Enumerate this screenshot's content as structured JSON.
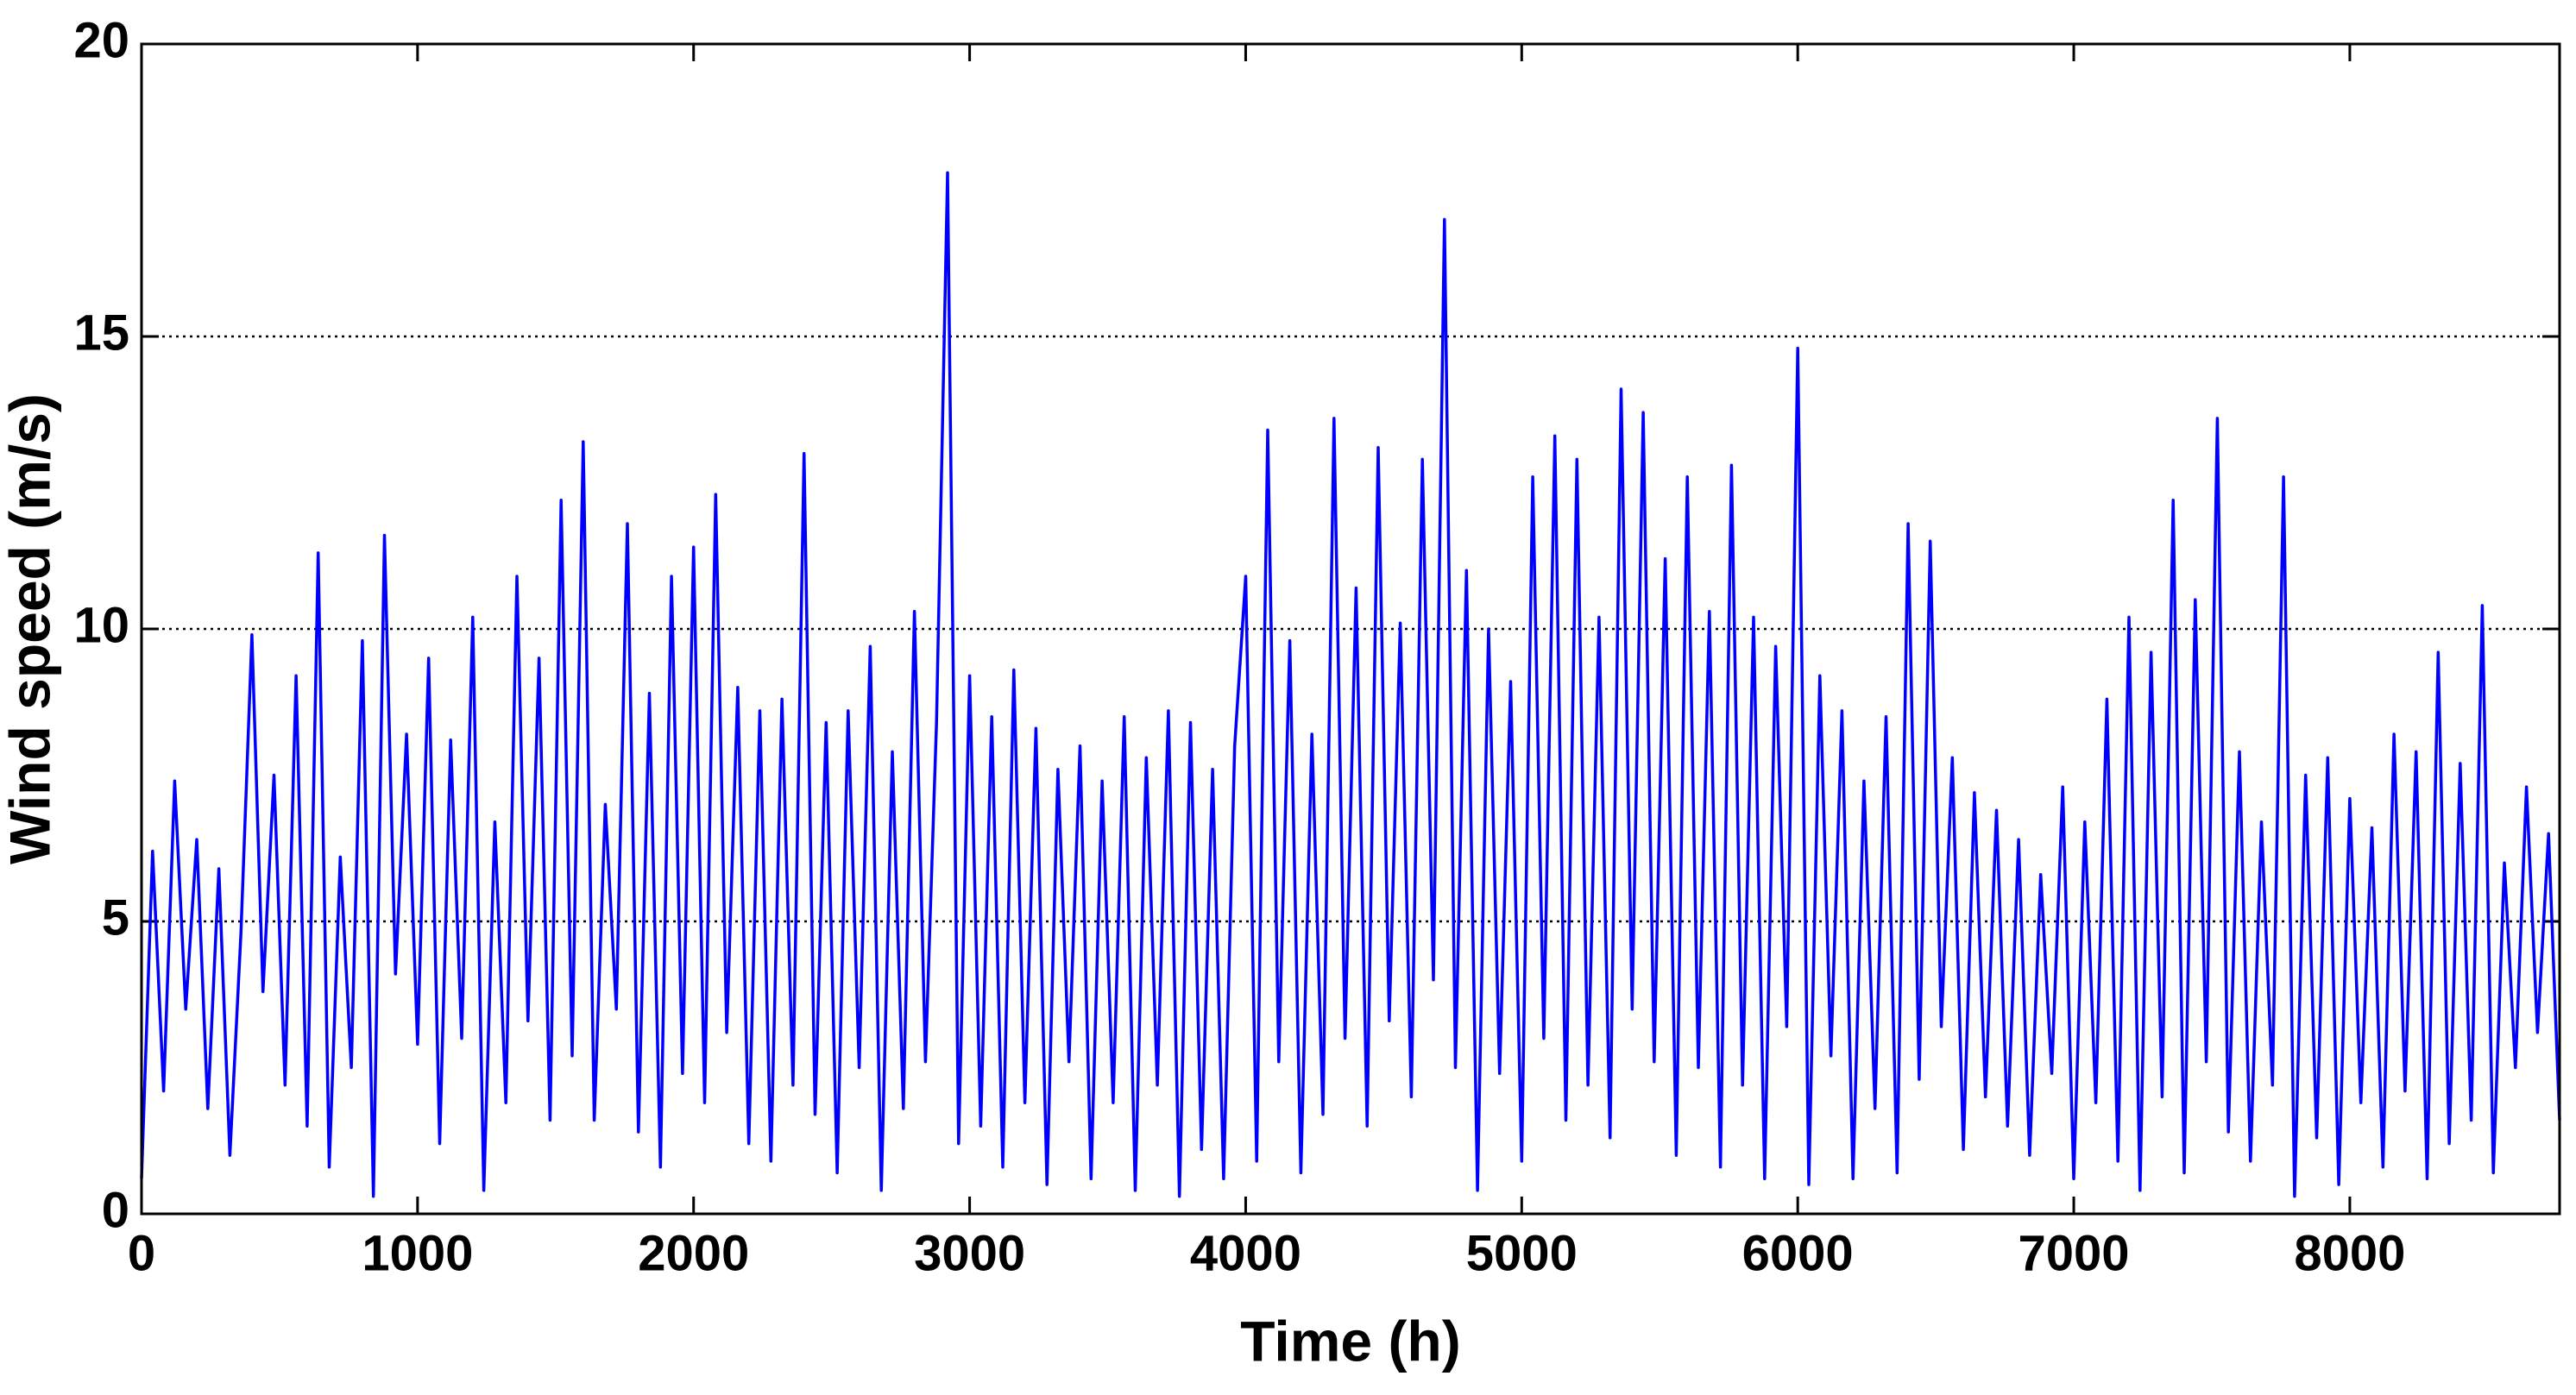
{
  "chart_data": {
    "type": "line",
    "x_label": "Time (h)",
    "y_label": "Wind speed (m/s)",
    "x": [
      0,
      40,
      80,
      120,
      160,
      200,
      240,
      280,
      320,
      360,
      400,
      440,
      480,
      520,
      560,
      600,
      640,
      680,
      720,
      760,
      800,
      840,
      880,
      920,
      960,
      1000,
      1040,
      1080,
      1120,
      1160,
      1200,
      1240,
      1280,
      1320,
      1360,
      1400,
      1440,
      1480,
      1520,
      1560,
      1600,
      1640,
      1680,
      1720,
      1760,
      1800,
      1840,
      1880,
      1920,
      1960,
      2000,
      2040,
      2080,
      2120,
      2160,
      2200,
      2240,
      2280,
      2320,
      2360,
      2400,
      2440,
      2480,
      2520,
      2560,
      2600,
      2640,
      2680,
      2720,
      2760,
      2800,
      2840,
      2880,
      2920,
      2960,
      3000,
      3040,
      3080,
      3120,
      3160,
      3200,
      3240,
      3280,
      3320,
      3360,
      3400,
      3440,
      3480,
      3520,
      3560,
      3600,
      3640,
      3680,
      3720,
      3760,
      3800,
      3840,
      3880,
      3920,
      3960,
      4000,
      4040,
      4080,
      4120,
      4160,
      4200,
      4240,
      4280,
      4320,
      4360,
      4400,
      4440,
      4480,
      4520,
      4560,
      4600,
      4640,
      4680,
      4720,
      4760,
      4800,
      4840,
      4880,
      4920,
      4960,
      5000,
      5040,
      5080,
      5120,
      5160,
      5200,
      5240,
      5280,
      5320,
      5360,
      5400,
      5440,
      5480,
      5520,
      5560,
      5600,
      5640,
      5680,
      5720,
      5760,
      5800,
      5840,
      5880,
      5920,
      5960,
      6000,
      6040,
      6080,
      6120,
      6160,
      6200,
      6240,
      6280,
      6320,
      6360,
      6400,
      6440,
      6480,
      6520,
      6560,
      6600,
      6640,
      6680,
      6720,
      6760,
      6800,
      6840,
      6880,
      6920,
      6960,
      7000,
      7040,
      7080,
      7120,
      7160,
      7200,
      7240,
      7280,
      7320,
      7360,
      7400,
      7440,
      7480,
      7520,
      7560,
      7600,
      7640,
      7680,
      7720,
      7760,
      7800,
      7840,
      7880,
      7920,
      7960,
      8000,
      8040,
      8080,
      8120,
      8160,
      8200,
      8240,
      8280,
      8320,
      8360,
      8400,
      8440,
      8480,
      8520,
      8560,
      8600,
      8640,
      8680,
      8720,
      8760
    ],
    "series": [
      {
        "color": "#0000ff",
        "values": [
          0.6,
          6.2,
          2.1,
          7.4,
          3.5,
          6.4,
          1.8,
          5.9,
          1.0,
          4.8,
          9.9,
          3.8,
          7.5,
          2.2,
          9.2,
          1.5,
          11.3,
          0.8,
          6.1,
          2.5,
          9.8,
          0.3,
          11.6,
          4.1,
          8.2,
          2.9,
          9.5,
          1.2,
          8.1,
          3.0,
          10.2,
          0.4,
          6.7,
          1.9,
          10.9,
          3.3,
          9.5,
          1.6,
          12.2,
          2.7,
          13.2,
          1.6,
          7.0,
          3.5,
          11.8,
          1.4,
          8.9,
          0.8,
          10.9,
          2.4,
          11.4,
          1.9,
          12.3,
          3.1,
          9.0,
          1.2,
          8.6,
          0.9,
          8.8,
          2.2,
          13.0,
          1.7,
          8.4,
          0.7,
          8.6,
          2.5,
          9.7,
          0.4,
          7.9,
          1.8,
          10.3,
          2.6,
          8.4,
          17.8,
          1.2,
          9.2,
          1.5,
          8.5,
          0.8,
          9.3,
          1.9,
          8.3,
          0.5,
          7.6,
          2.6,
          8.0,
          0.6,
          7.4,
          1.9,
          8.5,
          0.4,
          7.8,
          2.2,
          8.6,
          0.3,
          8.4,
          1.1,
          7.6,
          0.6,
          8.0,
          10.9,
          0.9,
          13.4,
          2.6,
          9.8,
          0.7,
          8.2,
          1.7,
          13.6,
          3.0,
          10.7,
          1.5,
          13.1,
          3.3,
          10.1,
          2.0,
          12.9,
          4.0,
          17.0,
          2.5,
          11.0,
          0.4,
          10.0,
          2.4,
          9.1,
          0.9,
          12.6,
          3.0,
          13.3,
          1.6,
          12.9,
          2.2,
          10.2,
          1.3,
          14.1,
          3.5,
          13.7,
          2.6,
          11.2,
          1.0,
          12.6,
          2.5,
          10.3,
          0.8,
          12.8,
          2.2,
          10.2,
          0.6,
          9.7,
          3.2,
          14.8,
          0.5,
          9.2,
          2.7,
          8.6,
          0.6,
          7.4,
          1.8,
          8.5,
          0.7,
          11.8,
          2.3,
          11.5,
          3.2,
          7.8,
          1.1,
          7.2,
          2.0,
          6.9,
          1.5,
          6.4,
          1.0,
          5.8,
          2.4,
          7.3,
          0.6,
          6.7,
          1.9,
          8.8,
          0.9,
          10.2,
          0.4,
          9.6,
          2.0,
          12.2,
          0.7,
          10.5,
          2.6,
          13.6,
          1.4,
          7.9,
          0.9,
          6.7,
          2.2,
          12.6,
          0.3,
          7.5,
          1.3,
          7.8,
          0.5,
          7.1,
          1.9,
          6.6,
          0.8,
          8.2,
          2.1,
          7.9,
          0.6,
          9.6,
          1.2,
          7.7,
          1.6,
          10.4,
          0.7,
          6.0,
          2.5,
          7.3,
          3.1,
          6.5,
          1.6
        ]
      }
    ],
    "xlim": [
      0,
      8760
    ],
    "xticks": [
      0,
      1000,
      2000,
      3000,
      4000,
      5000,
      6000,
      7000,
      8000
    ],
    "ylim": [
      0,
      20
    ],
    "yticks": [
      0,
      5,
      10,
      15,
      20
    ],
    "grid": "y"
  }
}
